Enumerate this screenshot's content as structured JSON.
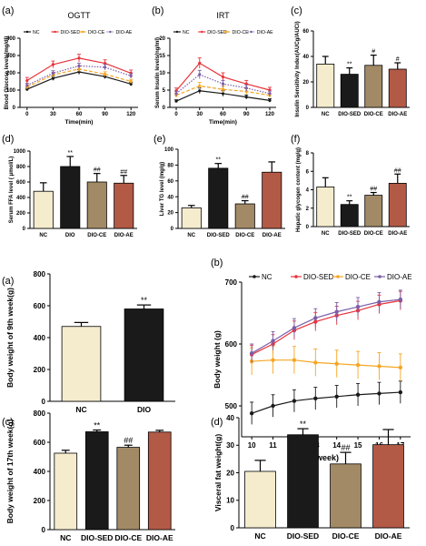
{
  "colors": {
    "nc": "#f5ecce",
    "sed": "#1a1a1a",
    "ce": "#a38a66",
    "ae": "#b35a46",
    "red": "#e8333a",
    "orange": "#f5a623",
    "purple": "#7b5ea7"
  },
  "chart_data": [
    {
      "panel_label": "(a)",
      "type": "line",
      "title": "OGTT",
      "xlabel": "Time(min)",
      "ylabel": "Blood Glucose levels(mg/dl)",
      "x": [
        0,
        30,
        60,
        90,
        120
      ],
      "xticks": [
        "0",
        "30",
        "60",
        "90",
        "120"
      ],
      "ylim": [
        0,
        400
      ],
      "yticks": [
        "0",
        "100",
        "200",
        "300",
        "400"
      ],
      "legend": [
        "NC",
        "DIO-SED",
        "DIO-CE",
        "DIO-AE"
      ],
      "legend_position": "top",
      "series": [
        {
          "name": "NC",
          "color": "#1a1a1a",
          "dash": "solid",
          "values": [
            105,
            168,
            205,
            178,
            135
          ],
          "errors": [
            10,
            12,
            14,
            12,
            10
          ]
        },
        {
          "name": "DIO-SED",
          "color": "#e8333a",
          "dash": "solid",
          "values": [
            155,
            248,
            285,
            255,
            198
          ],
          "errors": [
            18,
            20,
            22,
            20,
            18
          ]
        },
        {
          "name": "DIO-CE",
          "color": "#f5a623",
          "dash": "dash",
          "values": [
            118,
            188,
            222,
            192,
            150
          ],
          "errors": [
            12,
            14,
            16,
            14,
            12
          ]
        },
        {
          "name": "DIO-AE",
          "color": "#7b5ea7",
          "dash": "dot",
          "values": [
            128,
            198,
            240,
            232,
            182
          ],
          "errors": [
            12,
            14,
            16,
            16,
            14
          ]
        }
      ]
    },
    {
      "panel_label": "(b)",
      "type": "line",
      "title": "IRT",
      "xlabel": "Time(min)",
      "ylabel": "Serum Insulin levels(ng/ml)",
      "x": [
        0,
        30,
        60,
        90,
        120
      ],
      "xticks": [
        "0",
        "30",
        "60",
        "90",
        "120"
      ],
      "ylim": [
        0,
        20
      ],
      "yticks": [
        "0",
        "5",
        "10",
        "15",
        "20"
      ],
      "legend": [
        "NC",
        "DIO-SED",
        "DIO-CE",
        "DIO-AE"
      ],
      "legend_position": "top",
      "series": [
        {
          "name": "NC",
          "color": "#1a1a1a",
          "dash": "solid",
          "values": [
            1.8,
            4.8,
            4.0,
            3.0,
            2.0
          ],
          "errors": [
            0.4,
            0.8,
            0.8,
            0.6,
            0.5
          ]
        },
        {
          "name": "DIO-SED",
          "color": "#e8333a",
          "dash": "solid",
          "values": [
            4.8,
            12.8,
            8.8,
            6.8,
            5.0
          ],
          "errors": [
            0.8,
            1.5,
            1.2,
            1.0,
            0.8
          ]
        },
        {
          "name": "DIO-CE",
          "color": "#f5a623",
          "dash": "dash",
          "values": [
            3.5,
            6.2,
            5.2,
            4.6,
            3.5
          ],
          "errors": [
            0.6,
            1.0,
            0.9,
            0.8,
            0.6
          ]
        },
        {
          "name": "DIO-AE",
          "color": "#7b5ea7",
          "dash": "dot",
          "values": [
            4.0,
            9.5,
            6.8,
            5.6,
            4.0
          ],
          "errors": [
            0.7,
            1.2,
            1.0,
            0.9,
            0.7
          ]
        }
      ]
    },
    {
      "panel_label": "(c)",
      "type": "bar",
      "ylabel": "Insulin Sensitivity Index(AUCg/AUCi)",
      "categories": [
        "NC",
        "DIO-SED",
        "DIO-CE",
        "DIO-AE"
      ],
      "values": [
        34,
        26,
        33,
        30
      ],
      "errors": [
        6,
        5,
        8,
        5
      ],
      "annotations": [
        "",
        "**",
        "#",
        "#"
      ],
      "ylim": [
        0,
        60
      ],
      "yticks": [
        "0",
        "20",
        "40",
        "60"
      ]
    },
    {
      "panel_label": "(d)",
      "type": "bar",
      "ylabel": "Serum FFA level ( μmol/L)",
      "categories": [
        "NC",
        "DIO",
        "DIO-CE",
        "DIO-AE"
      ],
      "values": [
        480,
        800,
        600,
        585
      ],
      "errors": [
        110,
        130,
        110,
        100
      ],
      "annotations": [
        "",
        "**",
        "##",
        "##"
      ],
      "ylim": [
        0,
        1000
      ],
      "yticks": [
        "0",
        "200",
        "400",
        "600",
        "800",
        "1000"
      ]
    },
    {
      "panel_label": "(e)",
      "type": "bar",
      "ylabel": "Liver TG level (mg/g)",
      "categories": [
        "NC",
        "DIO-SED",
        "DIO-CE",
        "DIO-AE"
      ],
      "values": [
        26,
        76,
        31,
        71
      ],
      "errors": [
        3,
        6,
        4,
        13
      ],
      "annotations": [
        "",
        "**",
        "##",
        ""
      ],
      "ylim": [
        0,
        100
      ],
      "yticks": [
        "0",
        "20",
        "40",
        "60",
        "80",
        "100"
      ]
    },
    {
      "panel_label": "(f)",
      "type": "bar",
      "ylabel": "Hepatic glycogen content (mg/g)",
      "categories": [
        "NC",
        "DIO-SED",
        "DIO-CE",
        "DIO-AE"
      ],
      "values": [
        4.3,
        2.4,
        3.4,
        4.7
      ],
      "errors": [
        1.0,
        0.4,
        0.3,
        1.0
      ],
      "annotations": [
        "",
        "**",
        "##",
        "##"
      ],
      "ylim": [
        0,
        8
      ],
      "yticks": [
        "0",
        "2",
        "4",
        "6",
        "8"
      ]
    },
    {
      "panel_label": "(a)",
      "type": "bar",
      "ylabel": "Body weight of 9th week(g)",
      "categories": [
        "NC",
        "DIO"
      ],
      "values": [
        470,
        580
      ],
      "errors": [
        25,
        25
      ],
      "annotations": [
        "",
        "**"
      ],
      "ylim": [
        0,
        800
      ],
      "yticks": [
        "0",
        "200",
        "400",
        "600",
        "800"
      ]
    },
    {
      "panel_label": "(b)",
      "type": "line",
      "xlabel": "(week)",
      "ylabel": "Body weight (g)",
      "x": [
        10,
        11,
        12,
        13,
        14,
        15,
        16,
        17
      ],
      "xticks": [
        "10",
        "11",
        "12",
        "13",
        "14",
        "15",
        "16",
        "17"
      ],
      "ylim": [
        450,
        700
      ],
      "yticks": [
        "500",
        "600",
        "700"
      ],
      "legend": [
        "NC",
        "DIO-SED",
        "DIO-CE",
        "DIO-AE"
      ],
      "legend_position": "top",
      "series": [
        {
          "name": "NC",
          "color": "#1a1a1a",
          "dash": "solid",
          "values": [
            488,
            500,
            508,
            512,
            515,
            518,
            520,
            522
          ],
          "errors": [
            18,
            18,
            18,
            18,
            18,
            18,
            18,
            18
          ]
        },
        {
          "name": "DIO-SED",
          "color": "#e8333a",
          "dash": "solid",
          "values": [
            583,
            600,
            622,
            636,
            646,
            654,
            664,
            670
          ],
          "errors": [
            15,
            15,
            15,
            15,
            15,
            15,
            15,
            15
          ]
        },
        {
          "name": "DIO-CE",
          "color": "#f5a623",
          "dash": "solid",
          "values": [
            572,
            574,
            574,
            570,
            568,
            566,
            564,
            562
          ],
          "errors": [
            22,
            22,
            22,
            22,
            22,
            22,
            22,
            22
          ]
        },
        {
          "name": "DIO-AE",
          "color": "#7b5ea7",
          "dash": "solid",
          "values": [
            585,
            605,
            626,
            642,
            652,
            660,
            668,
            672
          ],
          "errors": [
            15,
            15,
            15,
            15,
            15,
            15,
            15,
            15
          ]
        }
      ]
    },
    {
      "panel_label": "(c)",
      "type": "bar",
      "ylabel": "Body weight of 17th week(g)",
      "categories": [
        "NC",
        "DIO-SED",
        "DIO-CE",
        "DIO-AE"
      ],
      "values": [
        525,
        672,
        565,
        670
      ],
      "errors": [
        20,
        12,
        15,
        12
      ],
      "annotations": [
        "",
        "**",
        "##",
        ""
      ],
      "ylim": [
        0,
        800
      ],
      "yticks": [
        "0",
        "200",
        "400",
        "600",
        "800"
      ]
    },
    {
      "panel_label": "(d)",
      "type": "bar",
      "ylabel": "Visceral fat weight(g)",
      "categories": [
        "NC",
        "DIO-SED",
        "DIO-CE",
        "DIO-AE"
      ],
      "values": [
        20.5,
        33.8,
        23.2,
        30.2
      ],
      "errors": [
        4.0,
        2.2,
        4.2,
        5.5
      ],
      "annotations": [
        "",
        "**",
        "##",
        ""
      ],
      "ylim": [
        0,
        40
      ],
      "yticks": [
        "0",
        "10",
        "20",
        "30",
        "40"
      ]
    }
  ]
}
